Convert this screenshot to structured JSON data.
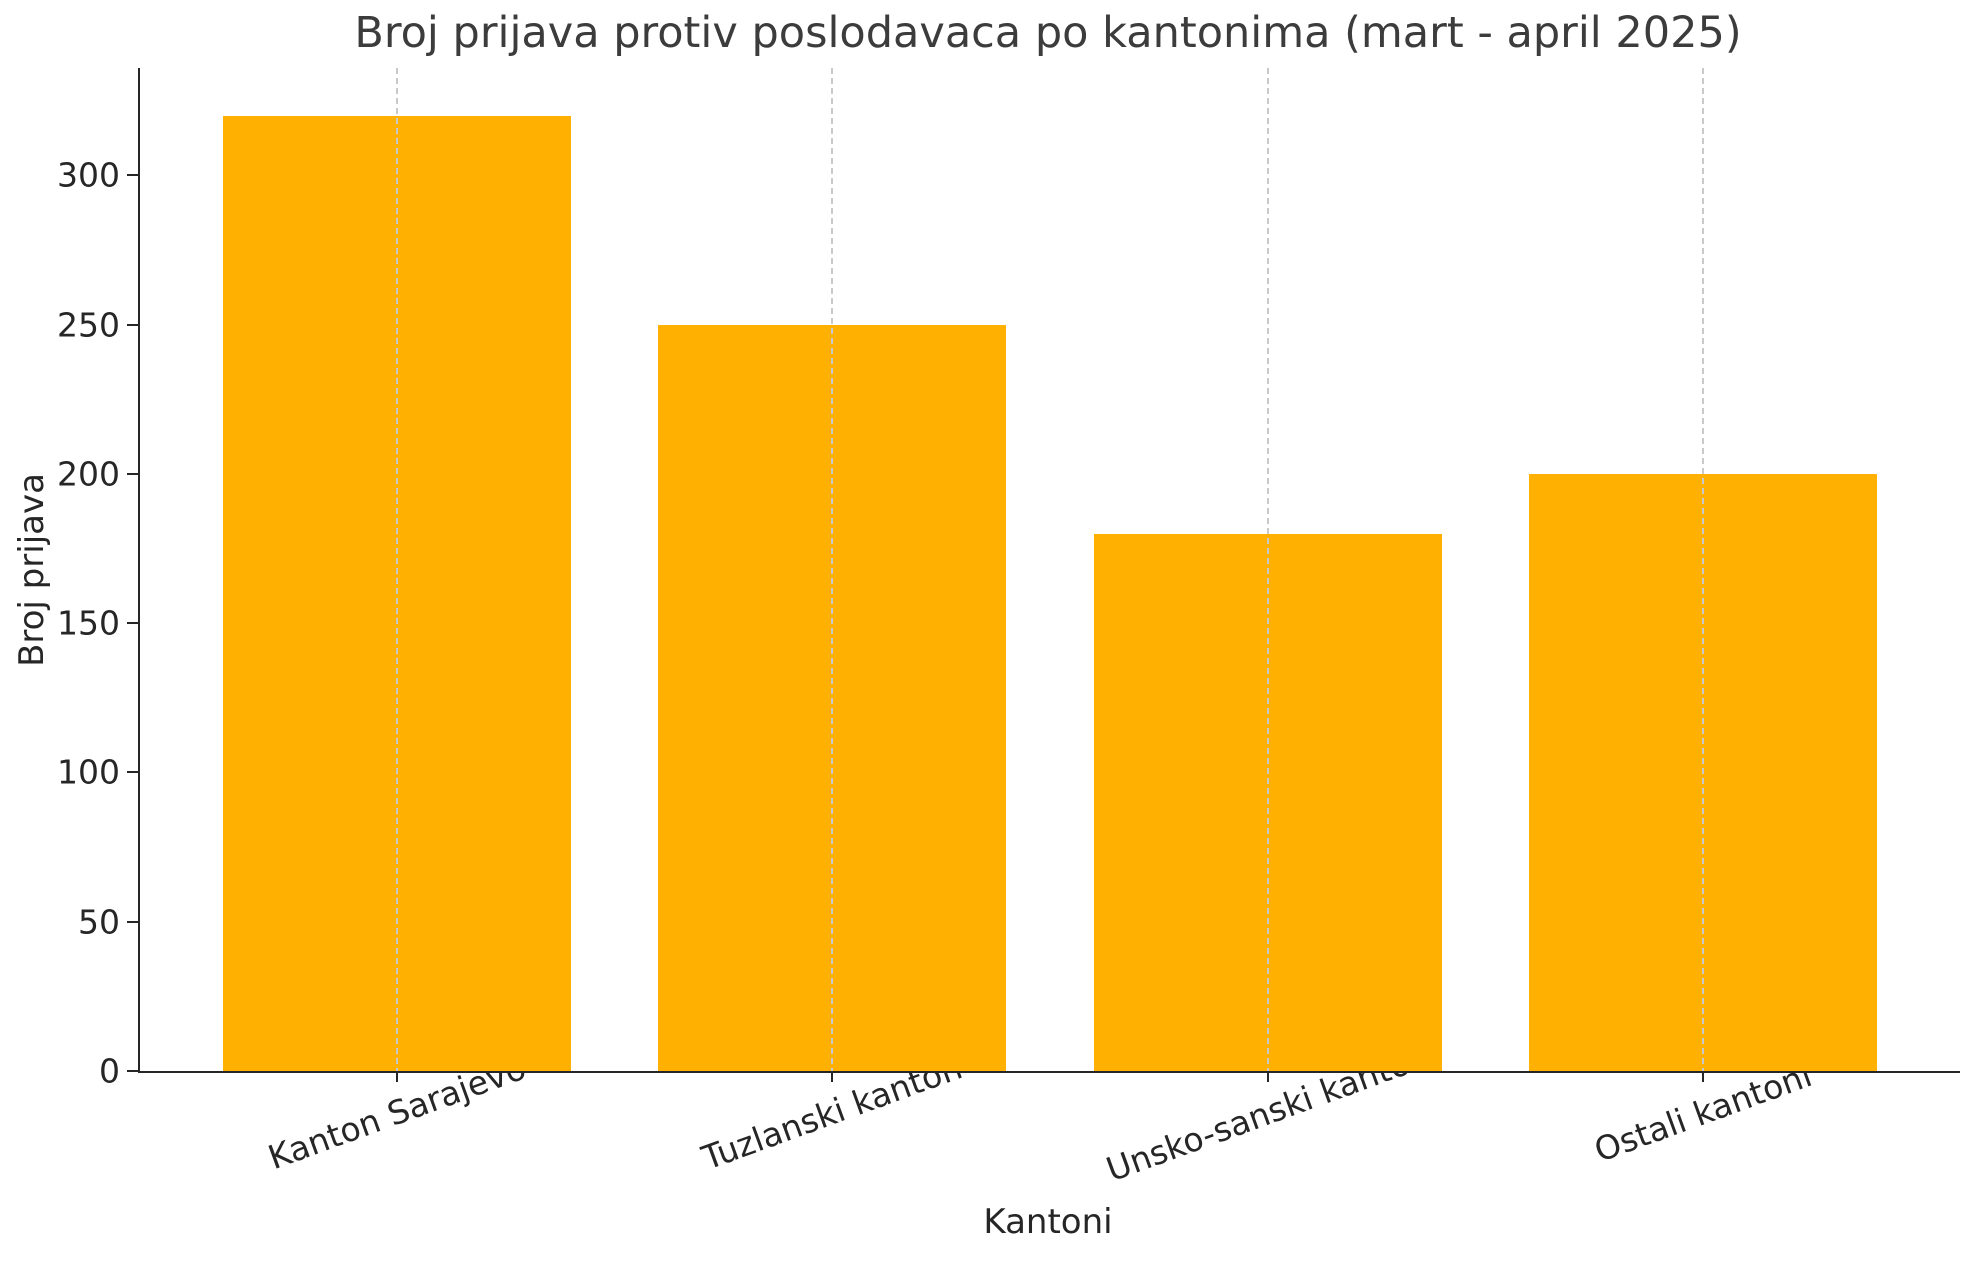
{
  "chart_data": {
    "type": "bar",
    "title": "Broj prijava protiv poslodavaca po kantonima (mart - april 2025)",
    "xlabel": "Kantoni",
    "ylabel": "Broj prijava",
    "categories": [
      "Kanton Sarajevo",
      "Tuzlanski kanton",
      "Unsko-sanski kanton",
      "Ostali kantoni"
    ],
    "values": [
      320,
      250,
      180,
      200
    ],
    "yticks": [
      0,
      50,
      100,
      150,
      200,
      250,
      300
    ],
    "ylim": [
      0,
      336
    ],
    "bar_color": "#FFB000",
    "grid": {
      "vertical": true,
      "horizontal": false,
      "style": "dashed",
      "color": "#c9c9c9",
      "above_bars": true
    },
    "spine_color": "#262626",
    "legend_position": "none",
    "xtick_rotation_deg": -20
  }
}
